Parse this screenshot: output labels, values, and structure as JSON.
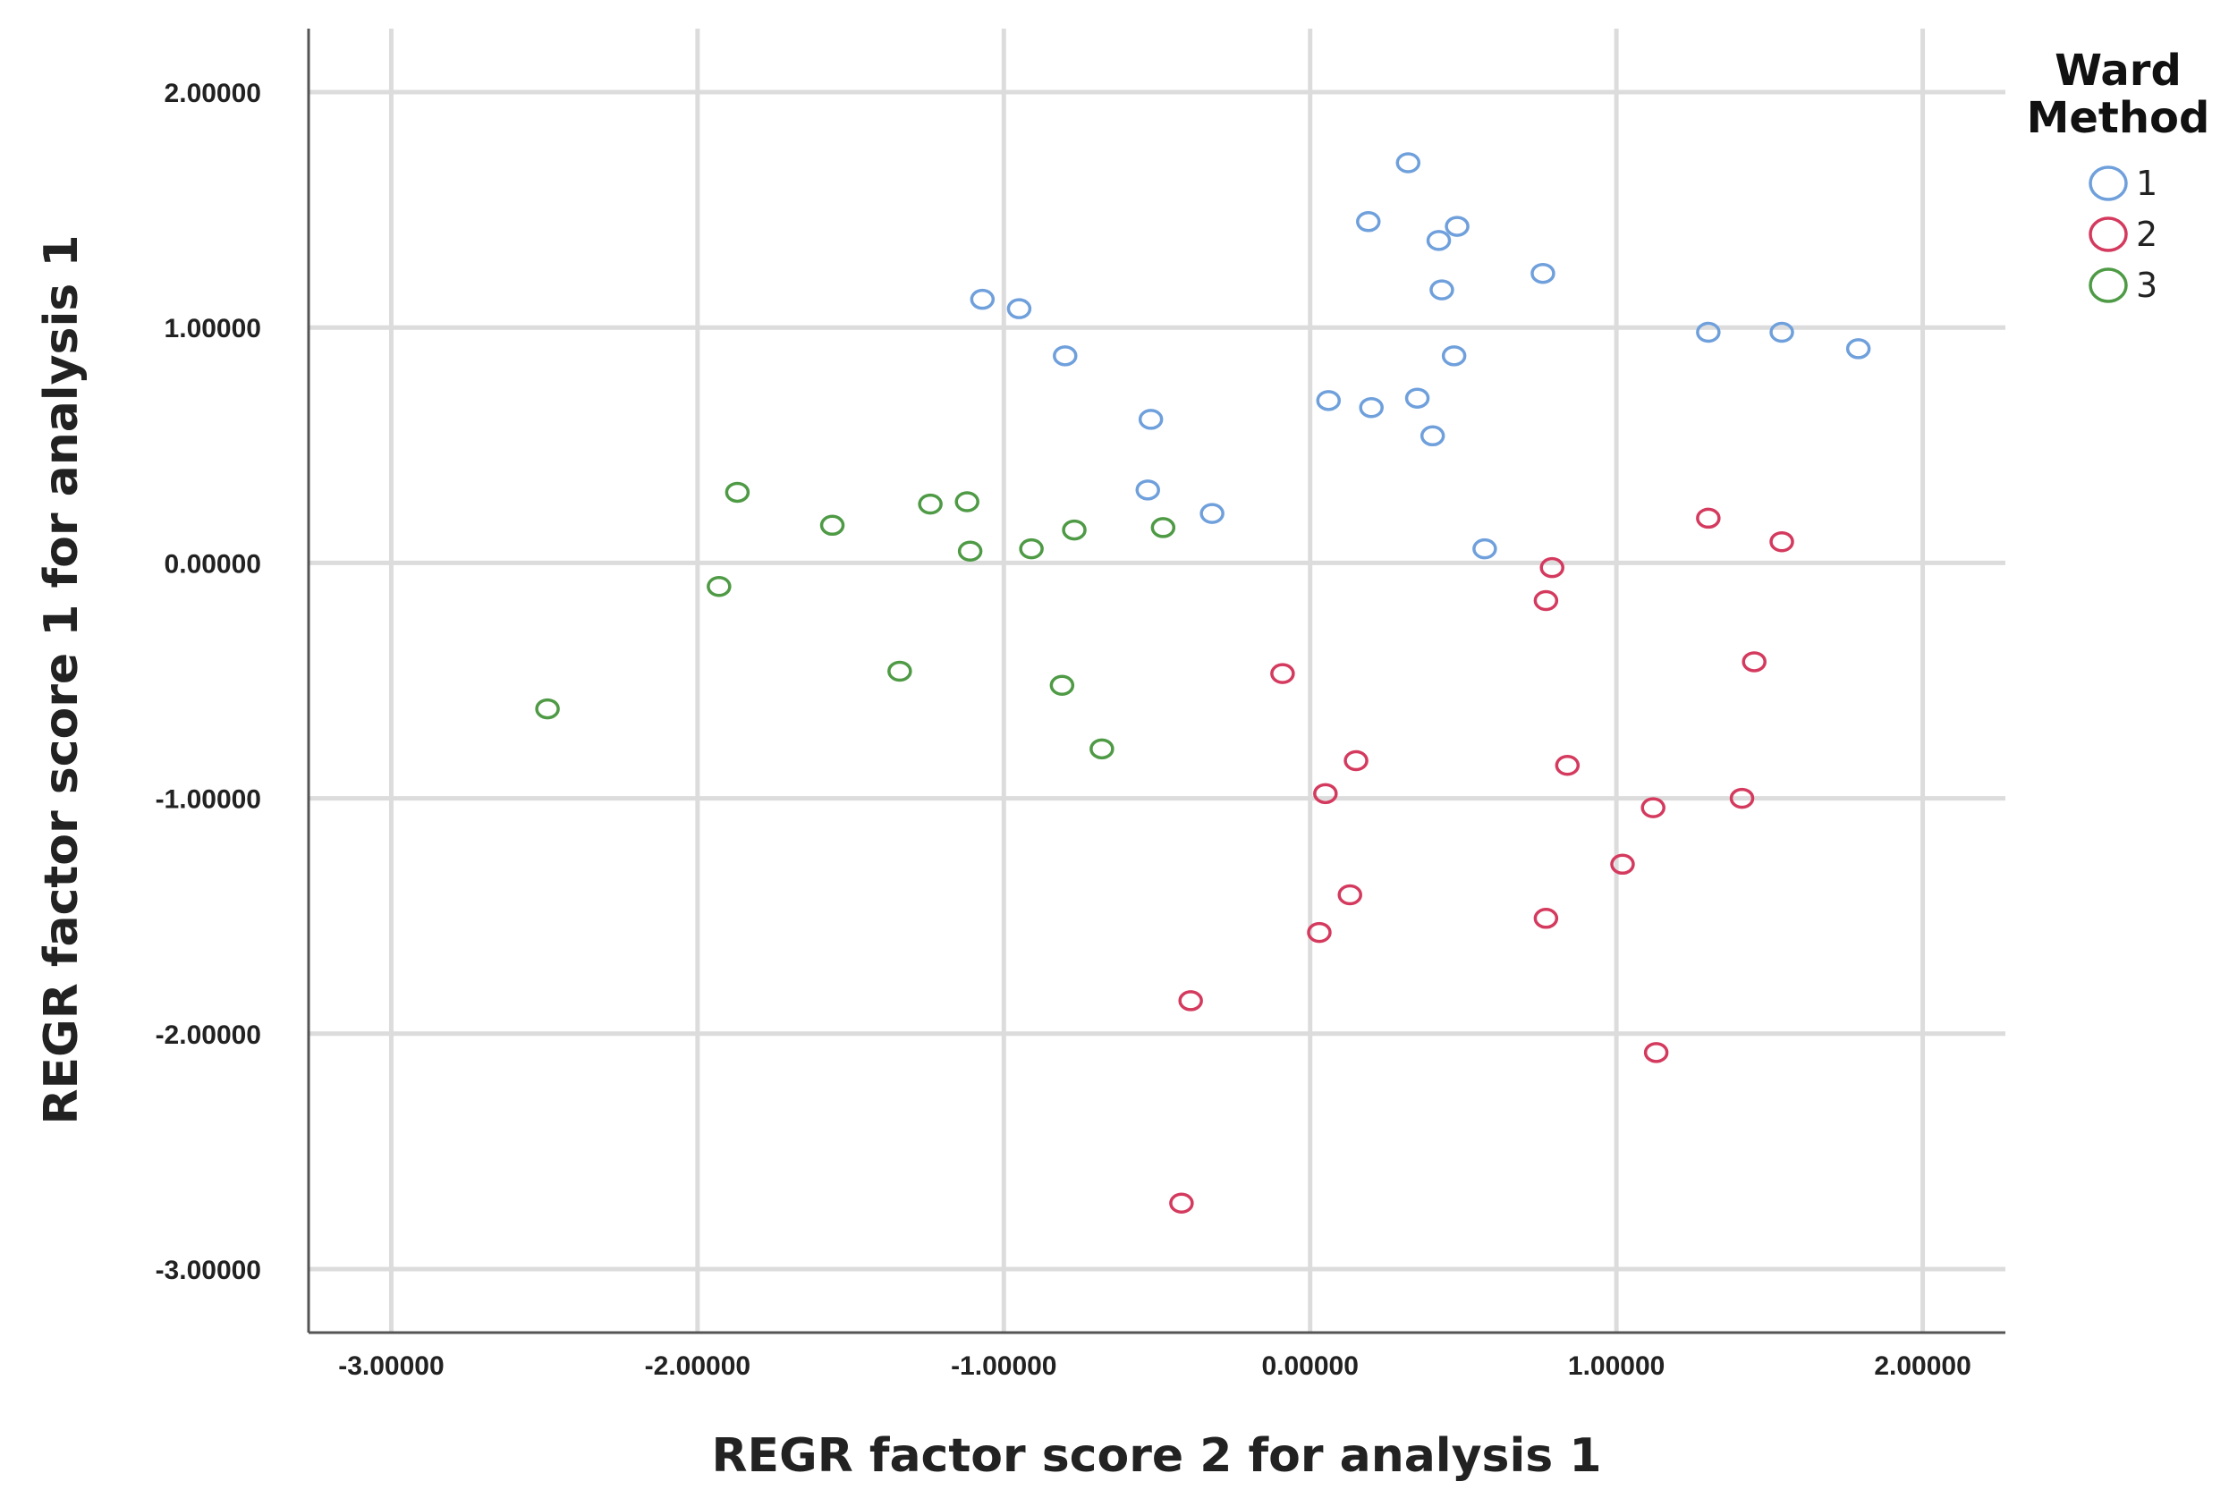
{
  "chart_data": {
    "type": "scatter",
    "xlabel": "REGR factor score   2 for analysis 1",
    "ylabel": "REGR factor score   1 for analysis 1",
    "xlim": [
      -3.27,
      2.27
    ],
    "ylim": [
      -3.27,
      2.27
    ],
    "x_ticks": [
      -3,
      -2,
      -1,
      0,
      1,
      2
    ],
    "y_ticks": [
      -3,
      -2,
      -1,
      0,
      1,
      2
    ],
    "x_tick_labels": [
      "-3.00000",
      "-2.00000",
      "-1.00000",
      "0.00000",
      "1.00000",
      "2.00000"
    ],
    "y_tick_labels": [
      "-3.00000",
      "-2.00000",
      "-1.00000",
      "0.00000",
      "1.00000",
      "2.00000"
    ],
    "grid": true,
    "legend": {
      "title_lines": [
        "Ward",
        "Method"
      ],
      "placement": "top-right",
      "entries": [
        "1",
        "2",
        "3"
      ]
    },
    "series": [
      {
        "name": "1",
        "color": "#6fa0dc",
        "points": [
          [
            -1.07,
            1.12
          ],
          [
            -0.95,
            1.08
          ],
          [
            -0.8,
            0.88
          ],
          [
            -0.52,
            0.61
          ],
          [
            -0.53,
            0.31
          ],
          [
            -0.32,
            0.21
          ],
          [
            0.06,
            0.69
          ],
          [
            0.19,
            1.45
          ],
          [
            0.2,
            0.66
          ],
          [
            0.32,
            1.7
          ],
          [
            0.35,
            0.7
          ],
          [
            0.4,
            0.54
          ],
          [
            0.42,
            1.37
          ],
          [
            0.43,
            1.16
          ],
          [
            0.47,
            0.88
          ],
          [
            0.48,
            1.43
          ],
          [
            0.57,
            0.06
          ],
          [
            0.76,
            1.23
          ],
          [
            1.3,
            0.98
          ],
          [
            1.54,
            0.98
          ],
          [
            1.79,
            0.91
          ]
        ]
      },
      {
        "name": "2",
        "color": "#d43a5e",
        "points": [
          [
            1.3,
            0.19
          ],
          [
            1.54,
            0.09
          ],
          [
            0.79,
            -0.02
          ],
          [
            0.77,
            -0.16
          ],
          [
            1.45,
            -0.42
          ],
          [
            -0.09,
            -0.47
          ],
          [
            0.15,
            -0.84
          ],
          [
            0.84,
            -0.86
          ],
          [
            0.05,
            -0.98
          ],
          [
            1.41,
            -1.0
          ],
          [
            1.12,
            -1.04
          ],
          [
            1.02,
            -1.28
          ],
          [
            0.13,
            -1.41
          ],
          [
            0.77,
            -1.51
          ],
          [
            0.03,
            -1.57
          ],
          [
            -0.39,
            -1.86
          ],
          [
            1.13,
            -2.08
          ],
          [
            -0.42,
            -2.72
          ]
        ]
      },
      {
        "name": "3",
        "color": "#4e9a45",
        "points": [
          [
            -1.87,
            0.3
          ],
          [
            -1.56,
            0.16
          ],
          [
            -1.24,
            0.25
          ],
          [
            -1.12,
            0.26
          ],
          [
            -1.11,
            0.05
          ],
          [
            -0.91,
            0.06
          ],
          [
            -0.77,
            0.14
          ],
          [
            -0.48,
            0.15
          ],
          [
            -1.93,
            -0.1
          ],
          [
            -1.34,
            -0.46
          ],
          [
            -0.81,
            -0.52
          ],
          [
            -0.68,
            -0.79
          ],
          [
            -2.49,
            -0.62
          ]
        ]
      }
    ]
  }
}
